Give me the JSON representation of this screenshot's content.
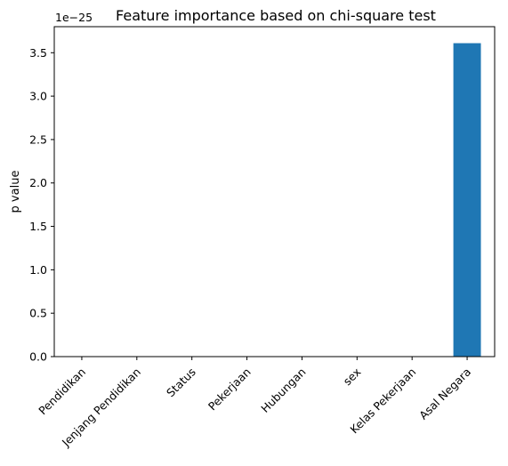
{
  "chart_data": {
    "type": "bar",
    "title": "Feature importance based on chi-square test",
    "xlabel": "",
    "ylabel": "p value",
    "y_scale_label": "1e−25",
    "categories": [
      "Pendidikan",
      "Jenjang Pendidikan",
      "Status",
      "Pekerjaan",
      "Hubungan",
      "sex",
      "Kelas Pekerjaan",
      "Asal Negara"
    ],
    "values": [
      0,
      0,
      0,
      0,
      0,
      0,
      0,
      3.61
    ],
    "ylim": [
      0,
      3.8
    ],
    "yticks": [
      "0.0",
      "0.5",
      "1.0",
      "1.5",
      "2.0",
      "2.5",
      "3.0",
      "3.5"
    ],
    "ytick_values": [
      0,
      0.5,
      1.0,
      1.5,
      2.0,
      2.5,
      3.0,
      3.5
    ],
    "grid": false,
    "legend": "none",
    "bar_color": "#1f77b4"
  }
}
